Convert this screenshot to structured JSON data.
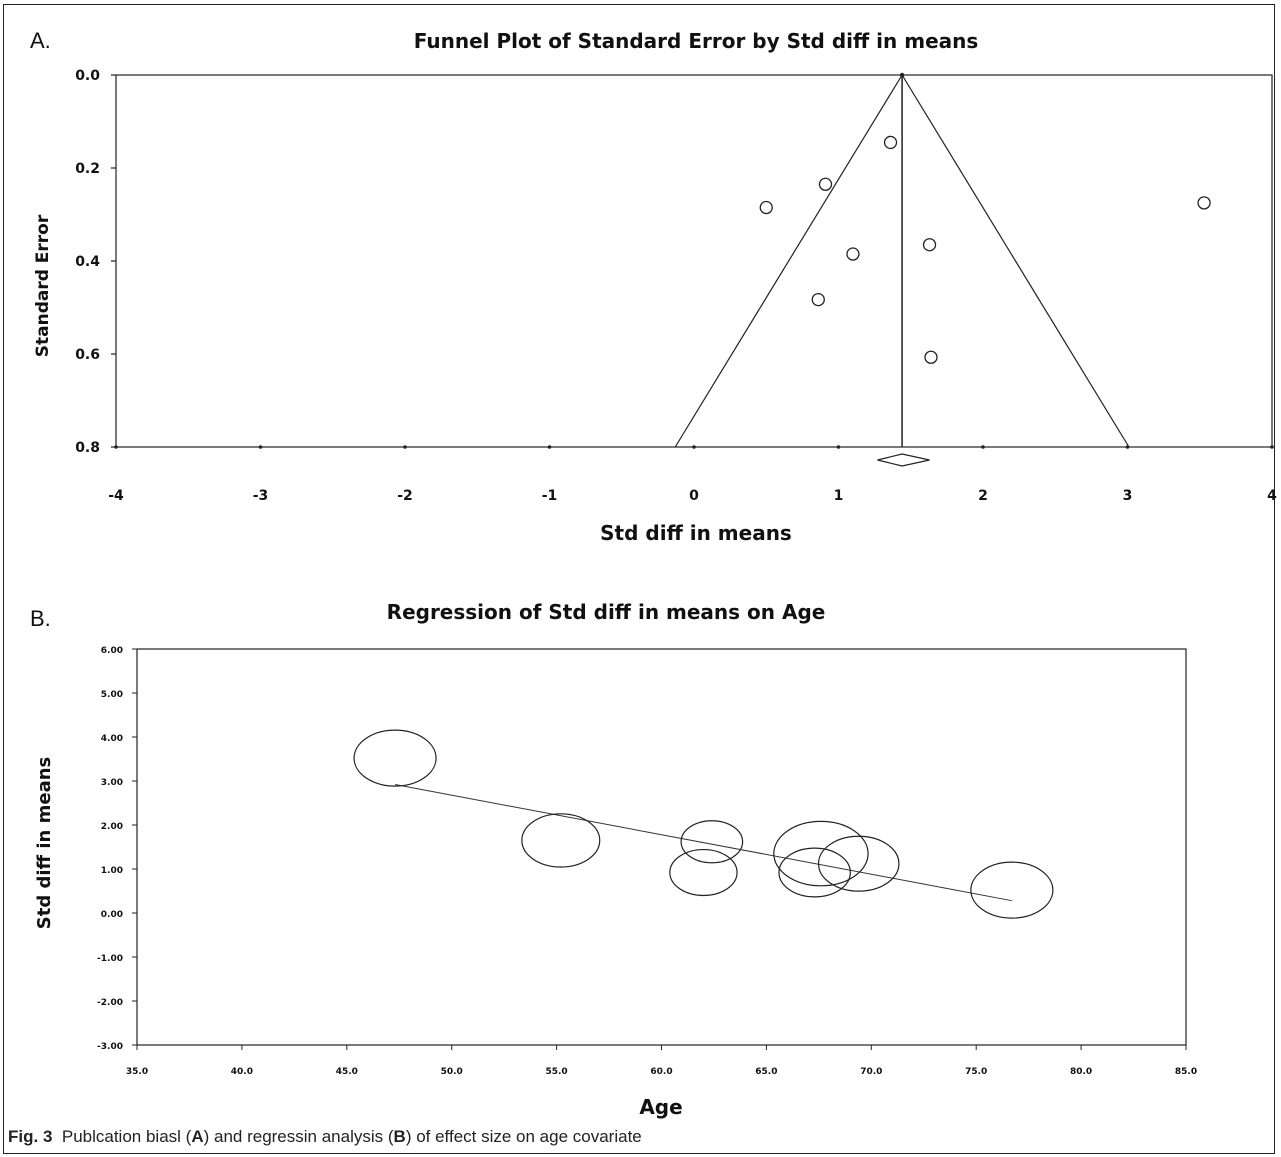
{
  "figure": {
    "panel_a_label": "A.",
    "panel_b_label": "B.",
    "caption": {
      "prefix": "Fig. 3",
      "text_1": "Publcation biasl (",
      "bold_1": "A",
      "text_2": ") and regressin analysis (",
      "bold_2": "B",
      "text_3": ") of effect size on age covariate"
    }
  },
  "chart_data": [
    {
      "type": "scatter",
      "title": "Funnel Plot of Standard Error by Std diff in means",
      "xlabel": "Std diff in means",
      "ylabel": "Standard Error",
      "xlim": [
        -4,
        4
      ],
      "ylim": [
        0.0,
        0.8
      ],
      "y_inverted": true,
      "xticks": [
        "-4",
        "-3",
        "-2",
        "-1",
        "0",
        "1",
        "2",
        "3",
        "4"
      ],
      "yticks": [
        "0.0",
        "0.2",
        "0.4",
        "0.6",
        "0.8"
      ],
      "points": [
        {
          "x": 1.36,
          "y": 0.145
        },
        {
          "x": 0.91,
          "y": 0.235
        },
        {
          "x": 0.5,
          "y": 0.285
        },
        {
          "x": 3.53,
          "y": 0.275
        },
        {
          "x": 1.63,
          "y": 0.365
        },
        {
          "x": 1.1,
          "y": 0.385
        },
        {
          "x": 0.86,
          "y": 0.483
        },
        {
          "x": 1.64,
          "y": 0.607
        }
      ],
      "pooled_effect": 1.44,
      "funnel": {
        "apex": [
          1.44,
          0.0
        ],
        "bottom_left": [
          -0.13,
          0.8
        ],
        "bottom_right": [
          3.01,
          0.8
        ]
      },
      "summary_diamond": {
        "center": 1.44,
        "low": 1.27,
        "high": 1.63
      },
      "grid": false,
      "legend": "none"
    },
    {
      "type": "scatter",
      "title": "Regression of Std diff in means on Age",
      "xlabel": "Age",
      "ylabel": "Std diff in means",
      "xlim": [
        35.0,
        85.0
      ],
      "ylim": [
        -3.0,
        6.0
      ],
      "xticks": [
        "35.0",
        "40.0",
        "45.0",
        "50.0",
        "55.0",
        "60.0",
        "65.0",
        "70.0",
        "75.0",
        "80.0",
        "85.0"
      ],
      "yticks": [
        "-3.00",
        "-2.00",
        "-1.00",
        "0.00",
        "1.00",
        "2.00",
        "3.00",
        "4.00",
        "5.00",
        "6.00"
      ],
      "bubbles": [
        {
          "x": 47.3,
          "y": 3.52,
          "weight": 1.0
        },
        {
          "x": 55.2,
          "y": 1.65,
          "weight": 0.95
        },
        {
          "x": 62.4,
          "y": 1.62,
          "weight": 0.75
        },
        {
          "x": 62.0,
          "y": 0.92,
          "weight": 0.82
        },
        {
          "x": 67.6,
          "y": 1.35,
          "weight": 1.15
        },
        {
          "x": 67.3,
          "y": 0.92,
          "weight": 0.87
        },
        {
          "x": 69.4,
          "y": 1.12,
          "weight": 0.98
        },
        {
          "x": 76.7,
          "y": 0.52,
          "weight": 1.0
        }
      ],
      "regression_line": {
        "x": [
          47.3,
          76.7
        ],
        "y": [
          2.92,
          0.28
        ]
      },
      "grid": false,
      "legend": "none"
    }
  ]
}
